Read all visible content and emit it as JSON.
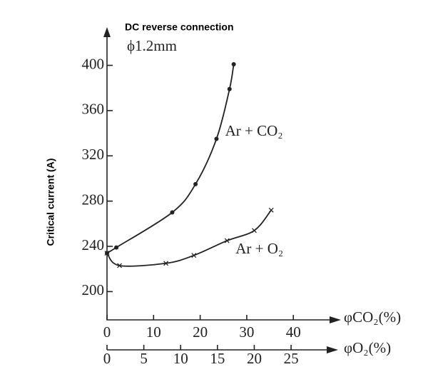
{
  "chart_data": {
    "type": "line",
    "title": "DC reverse connection",
    "subtitle": "ϕ1.2mm",
    "y_label": "Critical current (A)",
    "x_label": "φCO₂(%)",
    "x2_label": "φO₂(%)",
    "xlim": [
      0,
      49
    ],
    "xticks": [
      0,
      10,
      20,
      30,
      40
    ],
    "x2lim": [
      0,
      31
    ],
    "x2ticks": [
      0,
      5,
      10,
      15,
      20,
      25
    ],
    "ylim": [
      175,
      430
    ],
    "yticks": [
      200,
      240,
      280,
      320,
      360,
      400
    ],
    "series": [
      {
        "name": "Ar + CO₂",
        "color": "#222",
        "marker": "dot",
        "xaxis": "x",
        "x": [
          0,
          2,
          14,
          19,
          23.5,
          26.3,
          27.2
        ],
        "values": [
          234,
          239,
          270,
          295,
          335,
          379,
          401
        ]
      },
      {
        "name": "Ar + O₂",
        "color": "#222",
        "marker": "cross",
        "xaxis": "x2",
        "x": [
          0,
          1.7,
          8,
          11.8,
          16.3,
          20,
          22.3
        ],
        "values": [
          234,
          223,
          225,
          232,
          245,
          254,
          272
        ]
      }
    ]
  }
}
